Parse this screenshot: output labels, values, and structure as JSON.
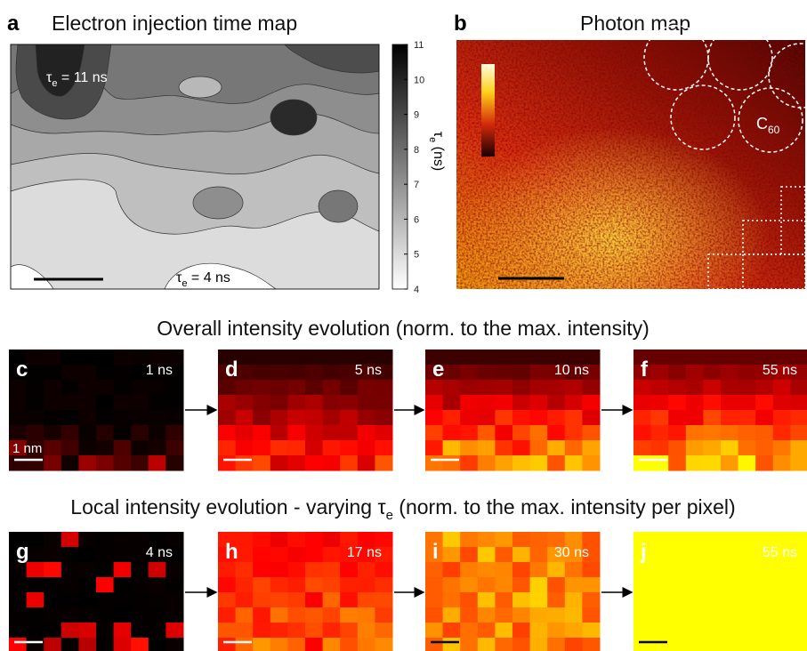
{
  "panel_a": {
    "label": "a",
    "title": "Electron injection time map",
    "annotations": [
      {
        "symbol": "τ",
        "subscript": "e",
        "text": " = 11 ns"
      },
      {
        "symbol": "τ",
        "subscript": "e",
        "text": " = 4 ns"
      }
    ],
    "colorbar": {
      "ticks": [
        4,
        5,
        6,
        7,
        8,
        9,
        10,
        11
      ],
      "label": {
        "symbol": "τ",
        "subscript": "e",
        "text": " (ns)"
      }
    }
  },
  "panel_b": {
    "label": "b",
    "title": "Photon map",
    "annotation": {
      "text": "C",
      "subscript": "60"
    }
  },
  "rows": [
    {
      "title": "Overall intensity evolution (norm. to the max. intensity)",
      "panels": [
        {
          "label": "c",
          "time": "1 ns",
          "scale": "1 nm"
        },
        {
          "label": "d",
          "time": "5 ns"
        },
        {
          "label": "e",
          "time": "10 ns"
        },
        {
          "label": "f",
          "time": "55 ns"
        }
      ]
    },
    {
      "title_before": "Local intensity evolution - varying ",
      "title_symbol": "τ",
      "title_subscript": "e",
      "title_after": " (norm. to the max. intensity per pixel)",
      "panels": [
        {
          "label": "g",
          "time": "4 ns"
        },
        {
          "label": "h",
          "time": "17 ns"
        },
        {
          "label": "i",
          "time": "30 ns"
        },
        {
          "label": "j",
          "time": "55 ns"
        }
      ]
    }
  ]
}
